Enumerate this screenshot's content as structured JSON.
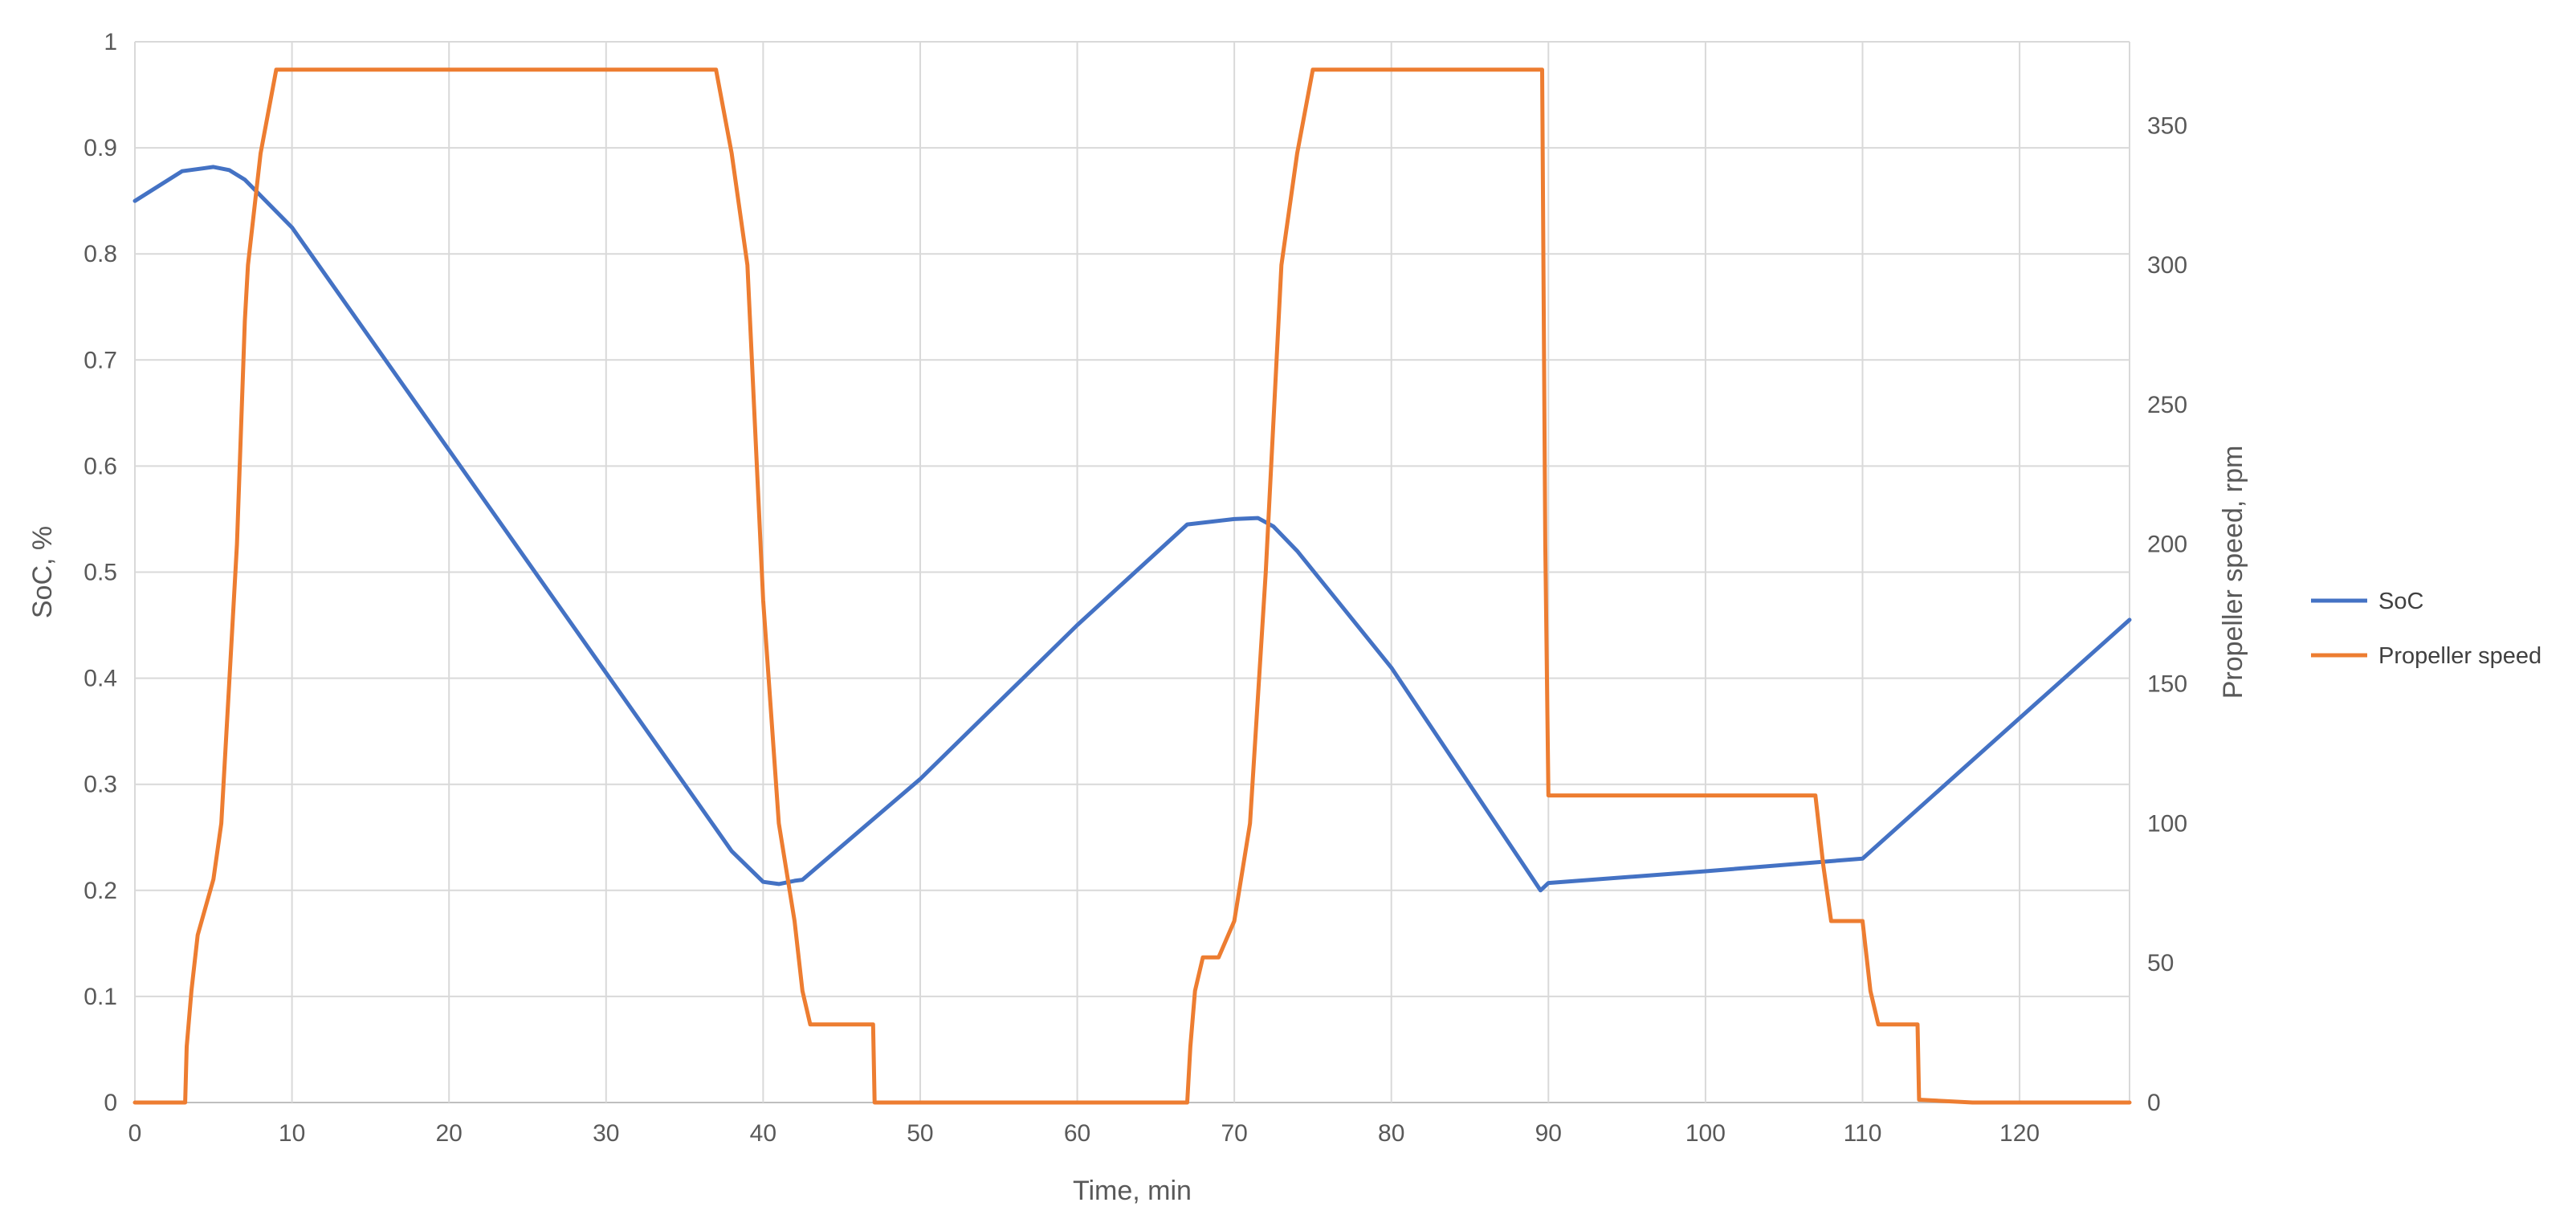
{
  "chart_data": {
    "type": "line",
    "title": "",
    "xlabel": "Time, min",
    "ylabel_left": "SoC, %",
    "ylabel_right": "Propeller speed, rpm",
    "xlim": [
      0,
      127
    ],
    "ylim_left": [
      0,
      1
    ],
    "ylim_right": [
      0,
      380
    ],
    "x_ticks": [
      0,
      10,
      20,
      30,
      40,
      50,
      60,
      70,
      80,
      90,
      100,
      110,
      120
    ],
    "y_left_ticks": [
      0,
      0.1,
      0.2,
      0.3,
      0.4,
      0.5,
      0.6,
      0.7,
      0.8,
      0.9,
      1
    ],
    "y_right_ticks": [
      0,
      50,
      100,
      150,
      200,
      250,
      300,
      350
    ],
    "grid": true,
    "legend_position": "right",
    "series": [
      {
        "name": "SoC",
        "axis": "left",
        "color": "#4472C4",
        "points": [
          [
            0,
            0.85
          ],
          [
            3,
            0.878
          ],
          [
            5,
            0.882
          ],
          [
            6,
            0.879
          ],
          [
            7,
            0.87
          ],
          [
            9,
            0.84
          ],
          [
            10,
            0.825
          ],
          [
            20,
            0.615
          ],
          [
            30,
            0.405
          ],
          [
            35,
            0.3
          ],
          [
            38,
            0.237
          ],
          [
            40,
            0.208
          ],
          [
            41,
            0.206
          ],
          [
            42,
            0.209
          ],
          [
            42.5,
            0.21
          ],
          [
            50,
            0.305
          ],
          [
            60,
            0.45
          ],
          [
            67,
            0.545
          ],
          [
            70,
            0.55
          ],
          [
            71.5,
            0.551
          ],
          [
            72.5,
            0.543
          ],
          [
            74,
            0.52
          ],
          [
            80,
            0.41
          ],
          [
            89.5,
            0.2
          ],
          [
            90,
            0.207
          ],
          [
            100,
            0.218
          ],
          [
            110,
            0.23
          ],
          [
            127,
            0.455
          ]
        ]
      },
      {
        "name": "Propeller speed",
        "axis": "right",
        "color": "#ED7D31",
        "points": [
          [
            0,
            0
          ],
          [
            3.2,
            0
          ],
          [
            3.3,
            20
          ],
          [
            3.6,
            40
          ],
          [
            4,
            60
          ],
          [
            4.5,
            70
          ],
          [
            5,
            80
          ],
          [
            5.5,
            100
          ],
          [
            6,
            150
          ],
          [
            6.5,
            200
          ],
          [
            7,
            280
          ],
          [
            7.2,
            300
          ],
          [
            8,
            340
          ],
          [
            9,
            370
          ],
          [
            10,
            370
          ],
          [
            37,
            370
          ],
          [
            38,
            340
          ],
          [
            39,
            300
          ],
          [
            40,
            180
          ],
          [
            41,
            100
          ],
          [
            42,
            65
          ],
          [
            42.5,
            40
          ],
          [
            43,
            28
          ],
          [
            47,
            28
          ],
          [
            47.1,
            0
          ],
          [
            67,
            0
          ],
          [
            67.2,
            20
          ],
          [
            67.5,
            40
          ],
          [
            68,
            52
          ],
          [
            69,
            52
          ],
          [
            70,
            65
          ],
          [
            71,
            100
          ],
          [
            72,
            190
          ],
          [
            73,
            300
          ],
          [
            74,
            340
          ],
          [
            75,
            370
          ],
          [
            89.6,
            370
          ],
          [
            89.8,
            200
          ],
          [
            90,
            110
          ],
          [
            107,
            110
          ],
          [
            107.5,
            85
          ],
          [
            108,
            65
          ],
          [
            110,
            65
          ],
          [
            110.5,
            40
          ],
          [
            111,
            28
          ],
          [
            113.5,
            28
          ],
          [
            113.6,
            1
          ],
          [
            117,
            0
          ],
          [
            127,
            0
          ]
        ]
      }
    ]
  }
}
